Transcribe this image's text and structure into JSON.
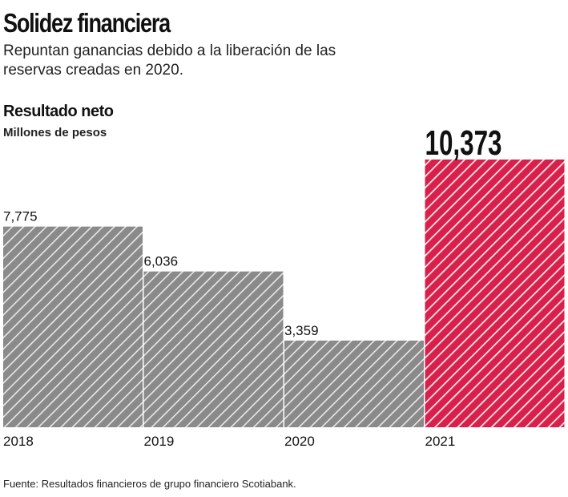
{
  "title": "Solidez financiera",
  "subtitle": "Repuntan ganancias debido a la liberación de las reservas creadas en 2020.",
  "source": "Fuente: Resultados financieros de grupo financiero Scotiabank.",
  "chart_data": {
    "type": "bar",
    "title": "Resultado neto",
    "ylabel": "Millones de pesos",
    "categories": [
      "2018",
      "2019",
      "2020",
      "2021"
    ],
    "values": [
      7775,
      6036,
      3359,
      10373
    ],
    "value_labels": [
      "7,775",
      "6,036",
      "3,359",
      "10,373"
    ],
    "ylim": [
      0,
      10373
    ],
    "grid": false,
    "colors": {
      "default": "#8a8a8a",
      "highlight": "#d9204a"
    },
    "highlight_index": 3,
    "fill_pattern": "diagonal-hatch"
  }
}
